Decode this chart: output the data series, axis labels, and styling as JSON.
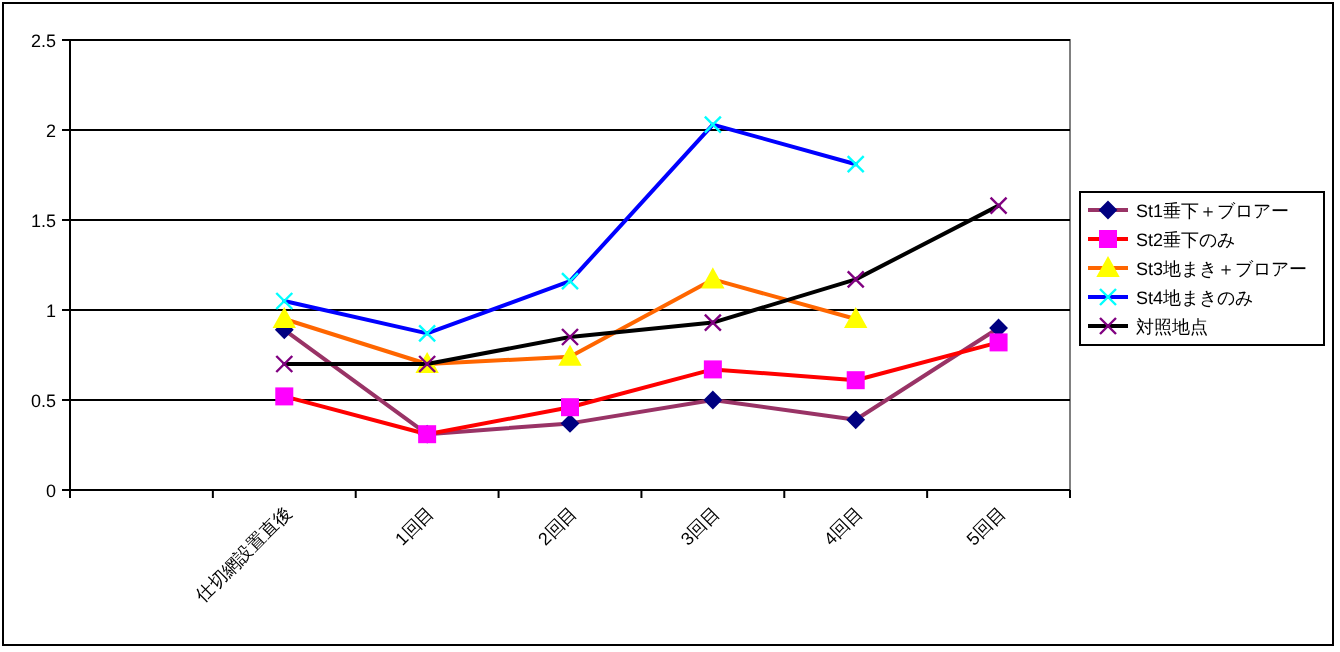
{
  "chart_data": {
    "type": "line",
    "categories": [
      null,
      "仕切網設置直後",
      "1回目",
      "2回目",
      "3回目",
      "4回目",
      "5回目"
    ],
    "series": [
      {
        "name": "St1垂下＋ブロアー",
        "color": "#993366",
        "colors": [
          null,
          "#000080",
          "#000080",
          "#000080",
          "#000080",
          "#000080",
          "#000080"
        ],
        "marker": "diamond",
        "values": [
          null,
          0.89,
          0.31,
          0.37,
          0.5,
          0.39,
          0.9
        ]
      },
      {
        "name": "St2垂下のみ",
        "color": "#ff0000",
        "colors": [
          null,
          "#ff00ff",
          "#ff00ff",
          "#ff00ff",
          "#ff00ff",
          "#ff00ff",
          "#ff00ff"
        ],
        "marker": "square",
        "values": [
          null,
          0.52,
          0.31,
          0.46,
          0.67,
          0.61,
          0.82
        ]
      },
      {
        "name": "St3地まき＋ブロアー",
        "color": "#ff6600",
        "colors": [
          null,
          "#ffff00",
          "#ffff00",
          "#ffff00",
          "#ffff00",
          "#ffff00",
          null
        ],
        "marker": "triangle",
        "values": [
          null,
          0.95,
          0.7,
          0.74,
          1.17,
          0.95,
          null
        ]
      },
      {
        "name": "St4地まきのみ",
        "color": "#0000ff",
        "colors": [
          null,
          "#00ffff",
          "#00ffff",
          "#00ffff",
          "#00ffff",
          "#00ffff",
          null
        ],
        "marker": "cross",
        "values": [
          null,
          1.05,
          0.87,
          1.16,
          2.03,
          1.81,
          null
        ]
      },
      {
        "name": "対照地点",
        "color": "#000000",
        "colors": [
          null,
          "#800080",
          "#800080",
          "#800080",
          "#800080",
          "#800080",
          "#800080"
        ],
        "marker": "cross",
        "values": [
          null,
          0.7,
          0.7,
          0.85,
          0.93,
          1.17,
          1.58
        ]
      }
    ],
    "ylim": [
      0,
      2.5
    ],
    "yticks": [
      0,
      0.5,
      1,
      1.5,
      2,
      2.5
    ],
    "grid": "y",
    "legend": "right"
  }
}
